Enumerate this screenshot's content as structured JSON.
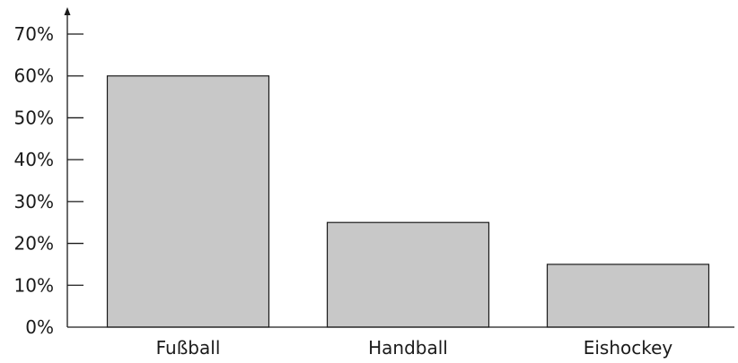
{
  "chart_data": {
    "type": "bar",
    "title": "",
    "xlabel": "",
    "ylabel": "",
    "categories": [
      "Fußball",
      "Handball",
      "Eishockey"
    ],
    "values": [
      60,
      25,
      15
    ],
    "unit": "%",
    "ylim": [
      0,
      70
    ],
    "yticks": [
      0,
      10,
      20,
      30,
      40,
      50,
      60,
      70
    ],
    "ytick_labels": [
      "0%",
      "10%",
      "20%",
      "30%",
      "40%",
      "50%",
      "60%",
      "70%"
    ],
    "bar_color": "#c8c8c8",
    "grid": false,
    "legend": "none"
  }
}
